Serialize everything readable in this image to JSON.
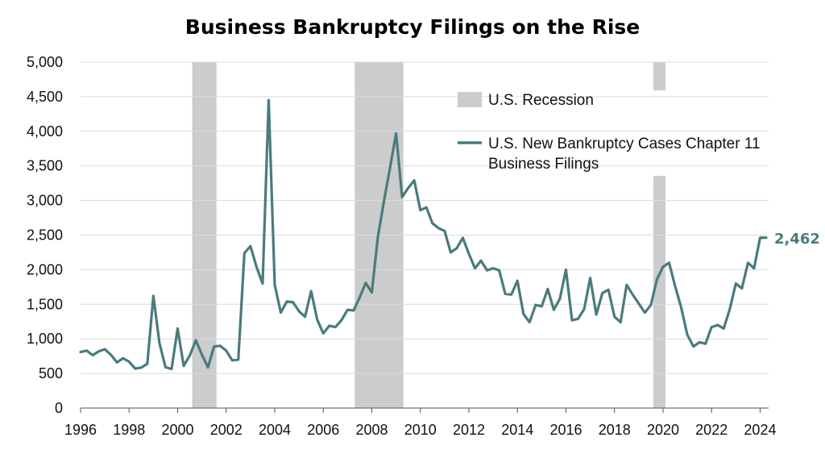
{
  "chart_data": {
    "type": "line",
    "title": "Business Bankruptcy Filings on the Rise",
    "xlabel": "",
    "ylabel": "",
    "xlim": [
      1996,
      2024.35
    ],
    "ylim": [
      0,
      5000
    ],
    "y_ticks": [
      0,
      500,
      1000,
      1500,
      2000,
      2500,
      3000,
      3500,
      4000,
      4500,
      5000
    ],
    "y_tick_labels": [
      "0",
      "500",
      "1,000",
      "1,500",
      "2,000",
      "2,500",
      "3,000",
      "3,500",
      "4,000",
      "4,500",
      "5,000"
    ],
    "x_ticks": [
      1996,
      1998,
      2000,
      2002,
      2004,
      2006,
      2008,
      2010,
      2012,
      2014,
      2016,
      2018,
      2020,
      2022,
      2024
    ],
    "x_tick_labels": [
      "1996",
      "1998",
      "2000",
      "2002",
      "2004",
      "2006",
      "2008",
      "2010",
      "2012",
      "2014",
      "2016",
      "2018",
      "2020",
      "2022",
      "2024"
    ],
    "grid": true,
    "legend_position": "top-right",
    "recessions": {
      "name": "U.S. Recession",
      "color": "#cccccc",
      "periods": [
        [
          2000.6,
          2001.6
        ],
        [
          2007.3,
          2009.3
        ],
        [
          2019.6,
          2020.1
        ]
      ]
    },
    "series": [
      {
        "name_lines": [
          "U.S. New Bankruptcy Cases Chapter 11",
          "Business Filings"
        ],
        "color": "#4a7b7c",
        "end_label": "2,462",
        "x": [
          1996.0,
          1996.25,
          1996.5,
          1996.75,
          1997.0,
          1997.25,
          1997.5,
          1997.75,
          1998.0,
          1998.25,
          1998.5,
          1998.75,
          1999.0,
          1999.25,
          1999.5,
          1999.75,
          2000.0,
          2000.25,
          2000.5,
          2000.75,
          2001.0,
          2001.25,
          2001.5,
          2001.75,
          2002.0,
          2002.25,
          2002.5,
          2002.75,
          2003.0,
          2003.25,
          2003.5,
          2003.75,
          2004.0,
          2004.25,
          2004.5,
          2004.75,
          2005.0,
          2005.25,
          2005.5,
          2005.75,
          2006.0,
          2006.25,
          2006.5,
          2006.75,
          2007.0,
          2007.25,
          2007.5,
          2007.75,
          2008.0,
          2008.25,
          2008.5,
          2008.75,
          2009.0,
          2009.25,
          2009.5,
          2009.75,
          2010.0,
          2010.25,
          2010.5,
          2010.75,
          2011.0,
          2011.25,
          2011.5,
          2011.75,
          2012.0,
          2012.25,
          2012.5,
          2012.75,
          2013.0,
          2013.25,
          2013.5,
          2013.75,
          2014.0,
          2014.25,
          2014.5,
          2014.75,
          2015.0,
          2015.25,
          2015.5,
          2015.75,
          2016.0,
          2016.25,
          2016.5,
          2016.75,
          2017.0,
          2017.25,
          2017.5,
          2017.75,
          2018.0,
          2018.25,
          2018.5,
          2018.75,
          2019.0,
          2019.25,
          2019.5,
          2019.75,
          2020.0,
          2020.25,
          2020.5,
          2020.75,
          2021.0,
          2021.25,
          2021.5,
          2021.75,
          2022.0,
          2022.25,
          2022.5,
          2022.75,
          2023.0,
          2023.25,
          2023.5,
          2023.75,
          2024.0,
          2024.25
        ],
        "values": [
          810,
          830,
          765,
          820,
          850,
          770,
          660,
          720,
          670,
          570,
          585,
          640,
          1620,
          940,
          590,
          565,
          1150,
          610,
          760,
          980,
          770,
          590,
          890,
          900,
          830,
          690,
          700,
          2240,
          2340,
          2040,
          1800,
          4450,
          1780,
          1380,
          1540,
          1530,
          1400,
          1320,
          1690,
          1280,
          1080,
          1190,
          1170,
          1270,
          1420,
          1410,
          1600,
          1810,
          1670,
          2470,
          2990,
          3470,
          3970,
          3050,
          3180,
          3290,
          2860,
          2900,
          2670,
          2600,
          2560,
          2250,
          2310,
          2460,
          2230,
          2020,
          2130,
          1990,
          2020,
          1990,
          1650,
          1640,
          1840,
          1360,
          1240,
          1490,
          1470,
          1720,
          1420,
          1580,
          2000,
          1270,
          1290,
          1430,
          1880,
          1350,
          1660,
          1710,
          1320,
          1240,
          1780,
          1640,
          1510,
          1380,
          1490,
          1860,
          2040,
          2100,
          1760,
          1450,
          1060,
          890,
          950,
          930,
          1170,
          1200,
          1150,
          1430,
          1800,
          1730,
          2100,
          2020,
          2462,
          2462
        ]
      }
    ]
  }
}
